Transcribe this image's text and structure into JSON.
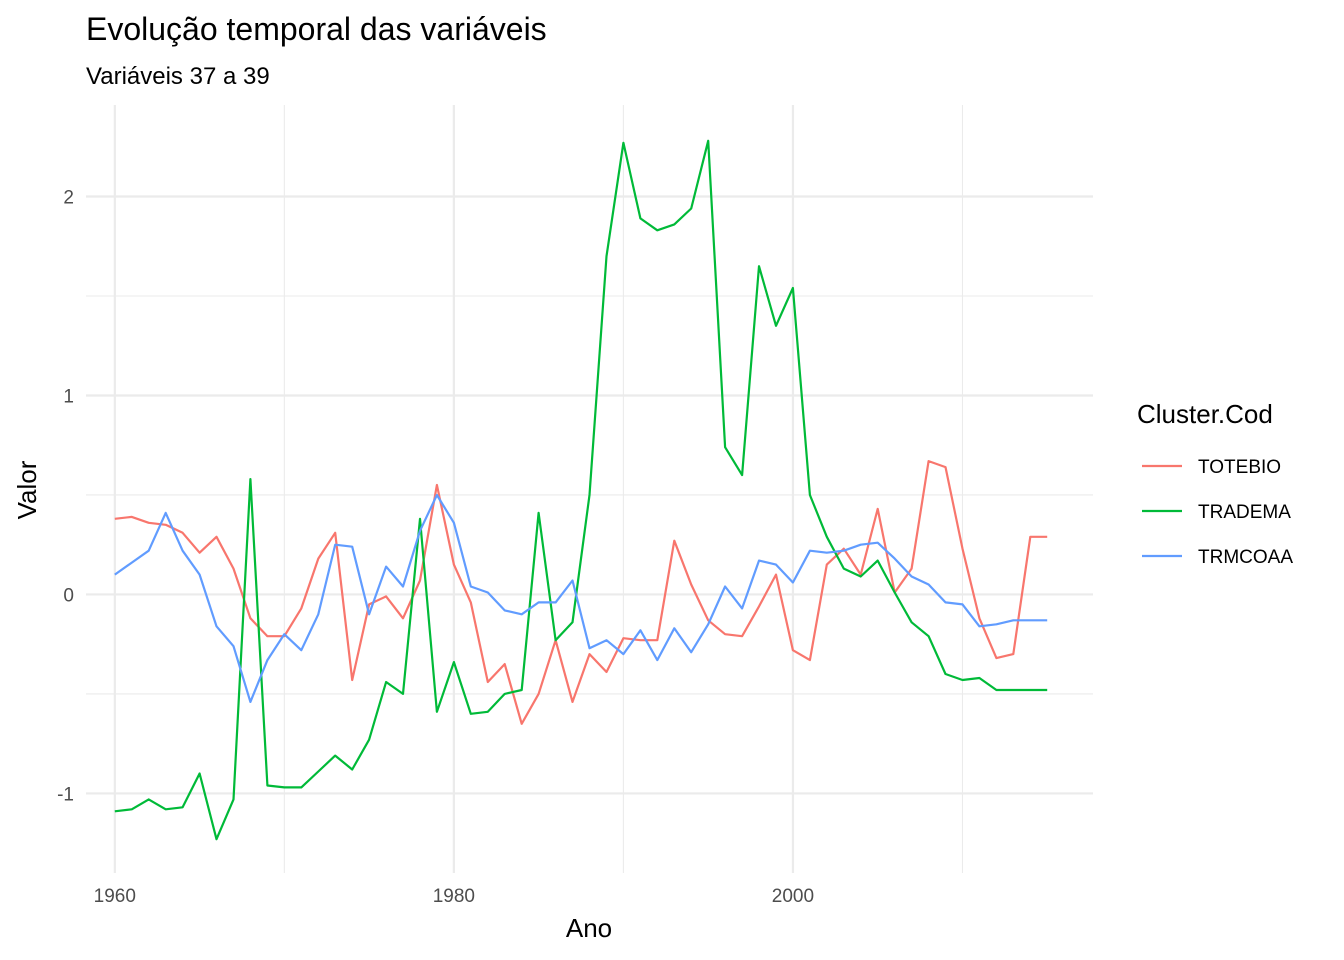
{
  "chart_data": {
    "type": "line",
    "title": "Evolução temporal das variáveis",
    "subtitle": "Variáveis 37 a 39",
    "xlabel": "Ano",
    "ylabel": "Valor",
    "xlim": [
      1958.3,
      2017.7
    ],
    "ylim": [
      -1.4,
      2.46
    ],
    "xticks": [
      1960,
      1980,
      2000
    ],
    "yticks": [
      -1,
      0,
      1,
      2
    ],
    "grid": true,
    "legend": {
      "title": "Cluster.Cod",
      "position": "right"
    },
    "x": [
      1960,
      1961,
      1962,
      1963,
      1964,
      1965,
      1966,
      1967,
      1968,
      1969,
      1970,
      1971,
      1972,
      1973,
      1974,
      1975,
      1976,
      1977,
      1978,
      1979,
      1980,
      1981,
      1982,
      1983,
      1984,
      1985,
      1986,
      1987,
      1988,
      1989,
      1990,
      1991,
      1992,
      1993,
      1994,
      1995,
      1996,
      1997,
      1998,
      1999,
      2000,
      2001,
      2002,
      2003,
      2004,
      2005,
      2006,
      2007,
      2008,
      2009,
      2010,
      2011,
      2012,
      2013,
      2014,
      2015
    ],
    "series": [
      {
        "name": "TOTEBIO",
        "color": "#F8766D",
        "values": [
          0.38,
          0.39,
          0.36,
          0.35,
          0.31,
          0.21,
          0.29,
          0.13,
          -0.12,
          -0.21,
          -0.21,
          -0.07,
          0.18,
          0.31,
          -0.43,
          -0.05,
          -0.01,
          -0.12,
          0.07,
          0.55,
          0.15,
          -0.04,
          -0.44,
          -0.35,
          -0.65,
          -0.5,
          -0.23,
          -0.54,
          -0.3,
          -0.39,
          -0.22,
          -0.23,
          -0.23,
          0.27,
          0.05,
          -0.13,
          -0.2,
          -0.21,
          -0.06,
          0.1,
          -0.28,
          -0.33,
          0.15,
          0.23,
          0.1,
          0.43,
          0.01,
          0.13,
          0.67,
          0.64,
          0.23,
          -0.12,
          -0.32,
          -0.3,
          0.29,
          0.29
        ]
      },
      {
        "name": "TRADEMA",
        "color": "#00BA38",
        "values": [
          -1.09,
          -1.08,
          -1.03,
          -1.08,
          -1.07,
          -0.9,
          -1.23,
          -1.03,
          0.58,
          -0.96,
          -0.97,
          -0.97,
          -0.89,
          -0.81,
          -0.88,
          -0.73,
          -0.44,
          -0.5,
          0.38,
          -0.59,
          -0.34,
          -0.6,
          -0.59,
          -0.5,
          -0.48,
          0.41,
          -0.23,
          -0.14,
          0.5,
          1.7,
          2.27,
          1.89,
          1.83,
          1.86,
          1.94,
          2.28,
          0.74,
          0.6,
          1.65,
          1.35,
          1.54,
          0.5,
          0.29,
          0.13,
          0.09,
          0.17,
          0.01,
          -0.14,
          -0.21,
          -0.4,
          -0.43,
          -0.42,
          -0.48,
          -0.48,
          -0.48,
          -0.48
        ]
      },
      {
        "name": "TRMCOAA",
        "color": "#619CFF",
        "values": [
          0.1,
          0.16,
          0.22,
          0.41,
          0.22,
          0.1,
          -0.16,
          -0.26,
          -0.54,
          -0.33,
          -0.2,
          -0.28,
          -0.1,
          0.25,
          0.24,
          -0.1,
          0.14,
          0.04,
          0.32,
          0.5,
          0.36,
          0.04,
          0.01,
          -0.08,
          -0.1,
          -0.04,
          -0.04,
          0.07,
          -0.27,
          -0.23,
          -0.3,
          -0.18,
          -0.33,
          -0.17,
          -0.29,
          -0.15,
          0.04,
          -0.07,
          0.17,
          0.15,
          0.06,
          0.22,
          0.21,
          0.22,
          0.25,
          0.26,
          0.18,
          0.09,
          0.05,
          -0.04,
          -0.05,
          -0.16,
          -0.15,
          -0.13,
          -0.13,
          -0.13
        ]
      }
    ]
  }
}
